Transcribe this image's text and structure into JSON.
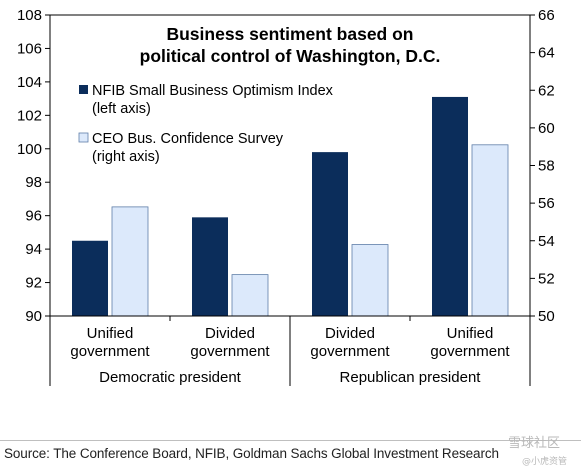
{
  "chart_data": {
    "type": "bar",
    "title_lines": [
      "Business sentiment based on",
      "political control of Washington, D.C."
    ],
    "categories": [
      "Unified\ngovernment",
      "Divided\ngovernment",
      "Divided\ngovernment",
      "Unified\ngovernment"
    ],
    "groups": [
      {
        "label": "Democratic president",
        "span": [
          0,
          1
        ]
      },
      {
        "label": "Republican president",
        "span": [
          2,
          3
        ]
      }
    ],
    "series": [
      {
        "name": "NFIB Small Business Optimism Index\n(left axis)",
        "axis": "left",
        "color": "#0b2d5b",
        "values": [
          94.5,
          95.9,
          99.8,
          103.1
        ]
      },
      {
        "name": "CEO Bus. Confidence Survey\n(right axis)",
        "axis": "right",
        "color": "#dce9fb",
        "values": [
          55.8,
          52.2,
          53.8,
          59.1
        ]
      }
    ],
    "y_left": {
      "min": 90,
      "max": 108,
      "ticks": [
        90,
        92,
        94,
        96,
        98,
        100,
        102,
        104,
        106,
        108
      ]
    },
    "y_right": {
      "min": 50,
      "max": 66,
      "ticks": [
        50,
        52,
        54,
        56,
        58,
        60,
        62,
        64,
        66
      ]
    },
    "grid": false,
    "legend_position": "top-left"
  },
  "source": "Source: The Conference Board, NFIB, Goldman Sachs Global Investment Research",
  "watermark": {
    "line1": "雪球社区",
    "line2": "@小虎资管"
  }
}
